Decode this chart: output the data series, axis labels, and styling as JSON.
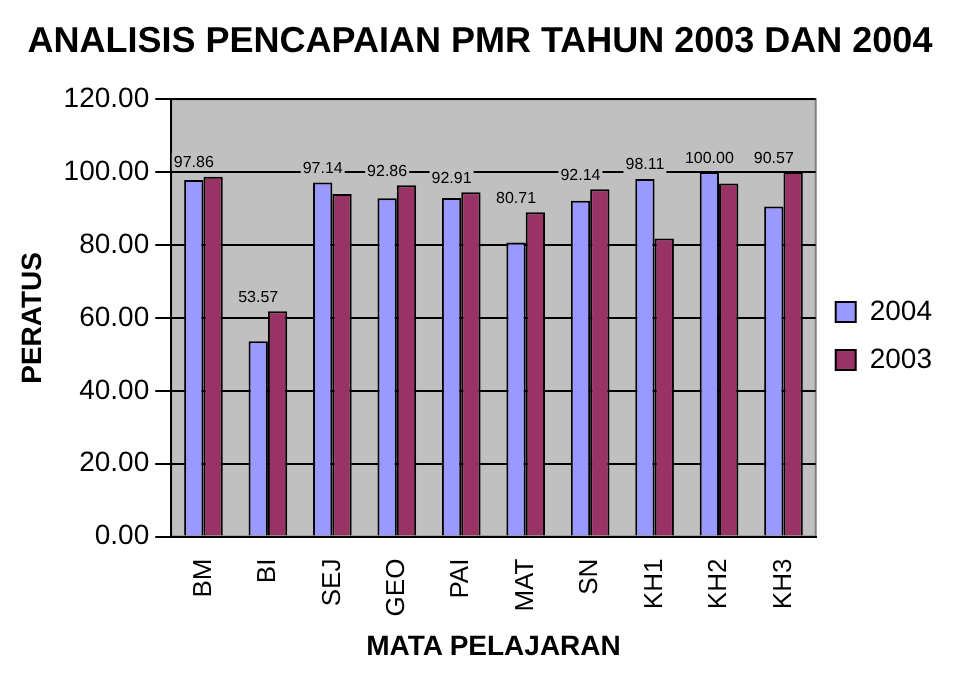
{
  "chart_data": {
    "type": "bar",
    "title": "ANALISIS PENCAPAIAN PMR TAHUN 2003 DAN 2004",
    "xlabel": "MATA PELAJARAN",
    "ylabel": "PERATUS",
    "categories": [
      "BM",
      "BI",
      "SEJ",
      "GEO",
      "PAI",
      "MAT",
      "SN",
      "KH1",
      "KH2",
      "KH3"
    ],
    "series": [
      {
        "name": "2004",
        "color": "#9999ff",
        "values": [
          97.86,
          53.57,
          97.14,
          92.86,
          92.91,
          80.71,
          92.14,
          98.11,
          100.0,
          90.57
        ],
        "value_labels": [
          "97.86",
          "53.57",
          "97.14",
          "92.86",
          "92.91",
          "80.71",
          "92.14",
          "98.11",
          "100.00",
          "90.57"
        ]
      },
      {
        "name": "2003",
        "color": "#993366",
        "values": [
          98.7,
          61.8,
          94.0,
          96.4,
          94.5,
          89.0,
          95.3,
          81.8,
          96.9,
          100.0
        ]
      }
    ],
    "ylim": [
      0,
      120
    ],
    "yticks": [
      {
        "value": 0,
        "label": "0.00"
      },
      {
        "value": 20,
        "label": "20.00"
      },
      {
        "value": 40,
        "label": "40.00"
      },
      {
        "value": 60,
        "label": "60.00"
      },
      {
        "value": 80,
        "label": "80.00"
      },
      {
        "value": 100,
        "label": "100.00"
      },
      {
        "value": 120,
        "label": "120.00"
      }
    ],
    "grid": "y",
    "legend": "right"
  }
}
